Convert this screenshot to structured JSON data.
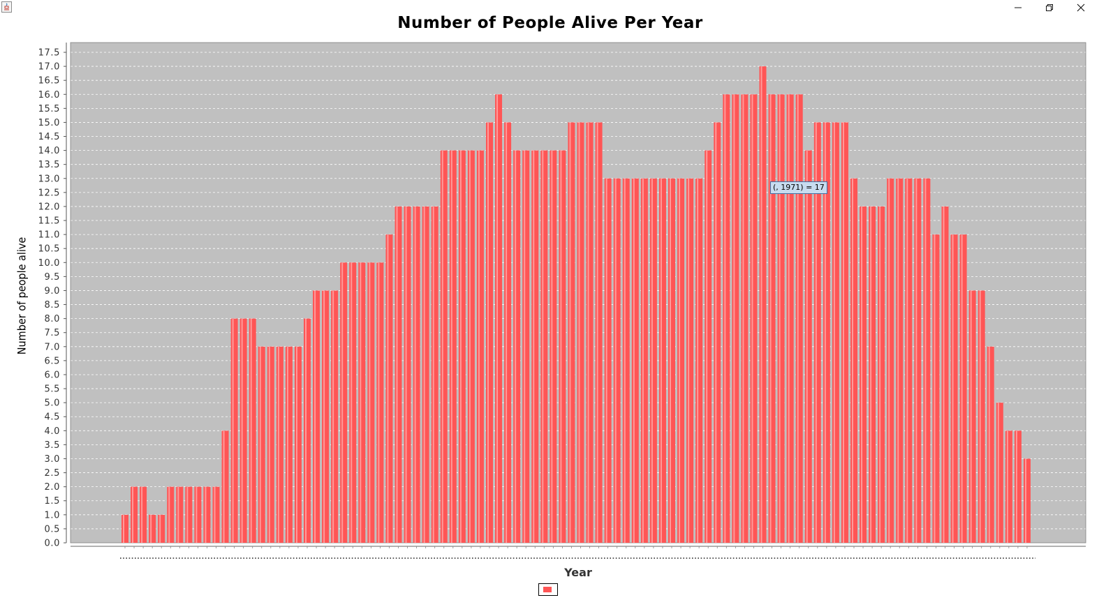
{
  "window": {
    "app_icon": "java-cup-icon",
    "controls": [
      "minimize-icon",
      "restore-icon",
      "close-icon"
    ]
  },
  "chart_data": {
    "type": "bar",
    "title": "Number of People Alive Per Year",
    "xlabel": "Year",
    "ylabel": "Number of people alive",
    "ylim": [
      0,
      17.5
    ],
    "y_ticks": [
      "0.0",
      "0.5",
      "1.0",
      "1.5",
      "2.0",
      "2.5",
      "3.0",
      "3.5",
      "4.0",
      "4.5",
      "5.0",
      "5.5",
      "6.0",
      "6.5",
      "7.0",
      "7.5",
      "8.0",
      "8.5",
      "9.0",
      "9.5",
      "10.0",
      "10.5",
      "11.0",
      "11.5",
      "12.0",
      "12.5",
      "13.0",
      "13.5",
      "14.0",
      "14.5",
      "15.0",
      "15.5",
      "16.0",
      "16.5",
      "17.0",
      "17.5"
    ],
    "grid": true,
    "legend": "bottom",
    "series": [
      {
        "color": "#ff5555",
        "values": [
          1,
          2,
          2,
          1,
          1,
          2,
          2,
          2,
          2,
          2,
          2,
          4,
          8,
          8,
          8,
          7,
          7,
          7,
          7,
          7,
          8,
          9,
          9,
          9,
          10,
          10,
          10,
          10,
          10,
          11,
          12,
          12,
          12,
          12,
          12,
          14,
          14,
          14,
          14,
          14,
          15,
          16,
          15,
          14,
          14,
          14,
          14,
          14,
          14,
          15,
          15,
          15,
          15,
          13,
          13,
          13,
          13,
          13,
          13,
          13,
          13,
          13,
          13,
          13,
          14,
          15,
          16,
          16,
          16,
          16,
          17,
          16,
          16,
          16,
          16,
          14,
          15,
          15,
          15,
          15,
          13,
          12,
          12,
          12,
          13,
          13,
          13,
          13,
          13,
          11,
          12,
          11,
          11,
          9,
          9,
          7,
          5,
          4,
          4,
          3
        ]
      }
    ],
    "tooltip": "(, 1971) = 17"
  }
}
